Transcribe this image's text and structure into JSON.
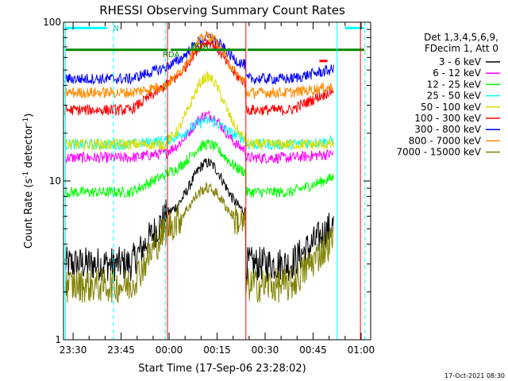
{
  "chart_data": {
    "type": "line",
    "title": "RHESSI Observing Summary Count Rates",
    "xlabel": "Start Time (17-Sep-06 23:28:02)",
    "ylabel": "Count Rate (s⁻¹ detector⁻¹)",
    "ylabel_main": "Count Rate (s",
    "ylabel_sup1": "-1",
    "ylabel_mid": " detector",
    "ylabel_sup2": "-1",
    "ylabel_end": ")",
    "y_scale": "log",
    "ylim": [
      1,
      100
    ],
    "xlim_minutes": [
      -3,
      93
    ],
    "x_ticks": [
      {
        "label": "23:30",
        "minute": 0
      },
      {
        "label": "23:45",
        "minute": 15
      },
      {
        "label": "00:00",
        "minute": 30
      },
      {
        "label": "00:15",
        "minute": 45
      },
      {
        "label": "00:30",
        "minute": 60
      },
      {
        "label": "00:45",
        "minute": 75
      },
      {
        "label": "01:00",
        "minute": 90
      }
    ],
    "y_ticks": [
      {
        "label": "1",
        "value": 1
      },
      {
        "label": "10",
        "value": 10
      },
      {
        "label": "100",
        "value": 100
      }
    ],
    "legend_header": [
      "Det 1,3,4,5,6,9,",
      "FDecim 1, Att 0"
    ],
    "legend_position": "outside-right",
    "timestamp": "17-Oct-2021 08:30",
    "segments": [
      [
        0,
        29.5
      ],
      [
        29.5,
        54
      ],
      [
        54,
        81.5
      ],
      [
        81.5,
        91
      ]
    ],
    "series": [
      {
        "name": "3 - 6 keV",
        "color": "#000000",
        "night": 3.0,
        "day": 6.0,
        "peak": 13,
        "flare_center": 42
      },
      {
        "name": "6 - 12 keV",
        "color": "#ff00ff",
        "night": 14,
        "day": 15,
        "peak": 26,
        "flare_center": 42
      },
      {
        "name": "12 - 25 keV",
        "color": "#00ff00",
        "night": 8.5,
        "day": 11,
        "peak": 17,
        "flare_center": 42
      },
      {
        "name": "25 - 50 keV",
        "color": "#00ffff",
        "night": 17,
        "day": 18,
        "peak": 24,
        "flare_center": 42
      },
      {
        "name": "50 - 100 keV",
        "color": "#dddd00",
        "night": 17,
        "day": 17,
        "peak": 45,
        "flare_center": 42
      },
      {
        "name": "100 - 300 keV",
        "color": "#ff0000",
        "night": 28,
        "day": 40,
        "peak": 75,
        "flare_center": 42
      },
      {
        "name": "300 - 800 keV",
        "color": "#0000ff",
        "night": 44,
        "day": 52,
        "peak": 80,
        "flare_center": 42
      },
      {
        "name": "800 - 7000 keV",
        "color": "#ff8c00",
        "night": 36,
        "day": 40,
        "peak": 82,
        "flare_center": 42
      },
      {
        "name": "7000 - 15000 keV",
        "color": "#808000",
        "night": 2.2,
        "day": 5.0,
        "peak": 9,
        "flare_center": 42
      }
    ],
    "annotations": [
      {
        "text": "N",
        "minute": 12.5,
        "value": 92,
        "color": "#00cccc"
      },
      {
        "text": "RDA",
        "minute": 28,
        "value": 63,
        "color": "#008800"
      },
      {
        "text": "RDA",
        "minute": 37,
        "value": 71,
        "color": "#008800"
      }
    ],
    "flag_bars": [
      {
        "name": "night",
        "color": "#00ffff",
        "value": 92,
        "ranges": [
          [
            -2.5,
            10.5
          ],
          [
            85,
            91
          ]
        ]
      },
      {
        "name": "saa-decimation",
        "color": "#008800",
        "value": 67,
        "ranges": [
          [
            -2.5,
            29.5
          ],
          [
            30.5,
            54
          ],
          [
            54.5,
            91
          ]
        ]
      },
      {
        "name": "attenuator",
        "color": "#ff0000",
        "value": 57,
        "ranges": [
          [
            77,
            79.5
          ]
        ]
      }
    ],
    "vertical_markers": [
      {
        "minute": -2.4,
        "color": "#00ffff",
        "style": "solid"
      },
      {
        "minute": 12.6,
        "color": "#00ffff",
        "style": "dashed"
      },
      {
        "minute": 28.8,
        "color": "#00ffff",
        "style": "dashed"
      },
      {
        "minute": 82.5,
        "color": "#00ffff",
        "style": "solid"
      },
      {
        "minute": 91.2,
        "color": "#00ffff",
        "style": "dashed"
      },
      {
        "minute": 29.5,
        "color": "#ff0000",
        "style": "solid"
      },
      {
        "minute": 54.0,
        "color": "#ff0000",
        "style": "solid"
      },
      {
        "minute": 89.8,
        "color": "#ff0000",
        "style": "solid"
      }
    ]
  }
}
